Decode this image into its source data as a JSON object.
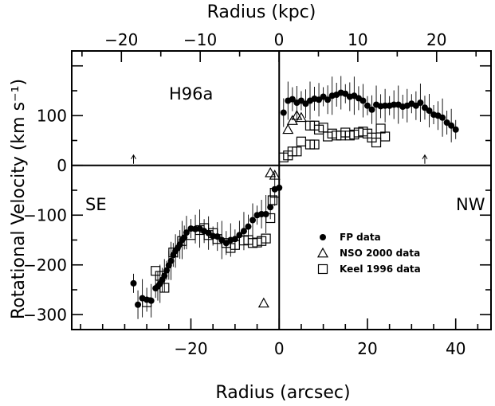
{
  "chart_data": {
    "type": "scatter",
    "xlabel_bottom": "Radius (arcsec)",
    "xlabel_top": "Radius (kpc)",
    "ylabel": "Rotational Velocity (km s⁻¹)",
    "xlim": [
      -47,
      48
    ],
    "ylim": [
      -330,
      230
    ],
    "xlim_kpc": [
      -26.3,
      26.9
    ],
    "x_ticks": [
      -20,
      0,
      20,
      40
    ],
    "x_tick_labels": [
      "−20",
      "0",
      "20",
      "40"
    ],
    "x_ticks_kpc": [
      -20,
      -10,
      0,
      10,
      20
    ],
    "x_tick_labels_kpc": [
      "−20",
      "−10",
      "0",
      "10",
      "20"
    ],
    "y_ticks": [
      100,
      0,
      -100,
      -200,
      -300
    ],
    "y_tick_labels": [
      "100",
      "0",
      "−100",
      "−200",
      "−300"
    ],
    "annotations": [
      "H96a",
      "SE",
      "NW"
    ],
    "arrow_x": [
      -33,
      33
    ],
    "grid": false,
    "legend_position": "lower-right",
    "series": [
      {
        "name": "FP data",
        "marker": "filled-circle",
        "points": [
          [
            -33,
            -237
          ],
          [
            -32,
            -280
          ],
          [
            -31,
            -267
          ],
          [
            -30,
            -270
          ],
          [
            -29,
            -272
          ],
          [
            -28,
            -247
          ],
          [
            -27.5,
            -243
          ],
          [
            -27,
            -238
          ],
          [
            -26.5,
            -230
          ],
          [
            -26,
            -222
          ],
          [
            -25.5,
            -211
          ],
          [
            -25,
            -201
          ],
          [
            -24.5,
            -192
          ],
          [
            -24,
            -180
          ],
          [
            -23.5,
            -172
          ],
          [
            -23,
            -166
          ],
          [
            -22.5,
            -159
          ],
          [
            -22,
            -150
          ],
          [
            -21.5,
            -145
          ],
          [
            -21,
            -135
          ],
          [
            -20,
            -127
          ],
          [
            -19,
            -128
          ],
          [
            -18,
            -127
          ],
          [
            -17,
            -132
          ],
          [
            -16,
            -136
          ],
          [
            -15,
            -142
          ],
          [
            -14,
            -143
          ],
          [
            -13,
            -150
          ],
          [
            -12,
            -156
          ],
          [
            -11,
            -150
          ],
          [
            -10,
            -148
          ],
          [
            -9,
            -140
          ],
          [
            -8,
            -132
          ],
          [
            -7,
            -123
          ],
          [
            -6,
            -110
          ],
          [
            -5,
            -100
          ],
          [
            -4,
            -98
          ],
          [
            -3,
            -98
          ],
          [
            -2,
            -84
          ],
          [
            -1,
            -48
          ],
          [
            0,
            -45
          ],
          [
            1,
            106
          ],
          [
            2,
            130
          ],
          [
            3,
            133
          ],
          [
            4,
            126
          ],
          [
            5,
            130
          ],
          [
            6,
            124
          ],
          [
            7,
            130
          ],
          [
            8,
            134
          ],
          [
            9,
            132
          ],
          [
            10,
            138
          ],
          [
            11,
            132
          ],
          [
            12,
            140
          ],
          [
            13,
            142
          ],
          [
            14,
            146
          ],
          [
            15,
            144
          ],
          [
            16,
            138
          ],
          [
            17,
            140
          ],
          [
            18,
            135
          ],
          [
            19,
            130
          ],
          [
            20,
            120
          ],
          [
            21,
            112
          ],
          [
            22,
            122
          ],
          [
            23,
            119
          ],
          [
            24,
            120
          ],
          [
            25,
            120
          ],
          [
            26,
            122
          ],
          [
            27,
            122
          ],
          [
            28,
            118
          ],
          [
            29,
            120
          ],
          [
            30,
            124
          ],
          [
            31,
            120
          ],
          [
            32,
            126
          ],
          [
            33,
            116
          ],
          [
            34,
            110
          ],
          [
            35,
            102
          ],
          [
            36,
            100
          ],
          [
            37,
            96
          ],
          [
            38,
            86
          ],
          [
            39,
            80
          ],
          [
            40,
            72
          ]
        ]
      },
      {
        "name": "NSO 2000 data",
        "marker": "open-triangle",
        "points": [
          [
            2,
            72
          ],
          [
            3,
            90
          ],
          [
            4,
            100
          ],
          [
            5,
            96
          ],
          [
            -3.5,
            -277
          ],
          [
            -2,
            -15
          ],
          [
            -1,
            -20
          ]
        ]
      },
      {
        "name": "Keel 1996 data",
        "marker": "open-square",
        "points": [
          [
            -30,
            -275
          ],
          [
            -28,
            -212
          ],
          [
            -27,
            -222
          ],
          [
            -26,
            -246
          ],
          [
            -24,
            -175
          ],
          [
            -22,
            -152
          ],
          [
            -20,
            -140
          ],
          [
            -18,
            -130
          ],
          [
            -17,
            -126
          ],
          [
            -16,
            -140
          ],
          [
            -15,
            -136
          ],
          [
            -14,
            -148
          ],
          [
            -12,
            -156
          ],
          [
            -11,
            -166
          ],
          [
            -10,
            -160
          ],
          [
            -8,
            -151
          ],
          [
            -7,
            -150
          ],
          [
            -6,
            -156
          ],
          [
            -5,
            -155
          ],
          [
            -4,
            -152
          ],
          [
            -3,
            -147
          ],
          [
            -2,
            -106
          ],
          [
            -1.5,
            -70
          ],
          [
            -1,
            -55
          ],
          [
            1,
            16
          ],
          [
            2,
            20
          ],
          [
            3,
            28
          ],
          [
            4,
            28
          ],
          [
            5,
            48
          ],
          [
            7,
            80
          ],
          [
            8,
            80
          ],
          [
            9,
            72
          ],
          [
            10,
            76
          ],
          [
            11,
            58
          ],
          [
            12,
            64
          ],
          [
            13,
            60
          ],
          [
            14,
            60
          ],
          [
            15,
            66
          ],
          [
            16,
            60
          ],
          [
            17,
            62
          ],
          [
            18,
            66
          ],
          [
            19,
            68
          ],
          [
            20,
            64
          ],
          [
            21,
            56
          ],
          [
            22,
            46
          ],
          [
            23,
            74
          ],
          [
            24,
            58
          ],
          [
            7,
            42
          ],
          [
            8,
            42
          ]
        ]
      }
    ]
  }
}
